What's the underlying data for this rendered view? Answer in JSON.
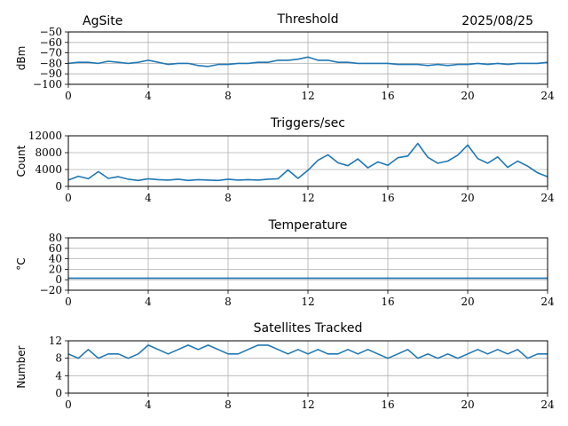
{
  "header": {
    "site": "AgSite",
    "date": "2025/08/25"
  },
  "chart_data": [
    {
      "type": "line",
      "title": "Threshold",
      "xlabel": "",
      "ylabel": "dBm",
      "xlim": [
        0,
        24
      ],
      "ylim": [
        -100,
        -50
      ],
      "xticks": [
        0,
        4,
        8,
        12,
        16,
        20,
        24
      ],
      "yticks": [
        -100,
        -90,
        -80,
        -70,
        -60,
        -50
      ],
      "ytick_labels": [
        "−100",
        "−90",
        "−80",
        "−70",
        "−60",
        "−50"
      ],
      "grid": true,
      "color": "#1f77b4",
      "series": [
        {
          "x": [
            0,
            0.5,
            1,
            1.5,
            2,
            2.5,
            3,
            3.5,
            4,
            4.5,
            5,
            5.5,
            6,
            6.5,
            7,
            7.5,
            8,
            8.5,
            9,
            9.5,
            10,
            10.5,
            11,
            11.5,
            12,
            12.5,
            13,
            13.5,
            14,
            14.5,
            15,
            15.5,
            16,
            16.5,
            17,
            17.5,
            18,
            18.5,
            19,
            19.5,
            20,
            20.5,
            21,
            21.5,
            22,
            22.5,
            23,
            23.5,
            24
          ],
          "values": [
            -80,
            -79,
            -79,
            -80,
            -78,
            -79,
            -80,
            -79,
            -77,
            -79,
            -81,
            -80,
            -80,
            -82,
            -83,
            -81,
            -81,
            -80,
            -80,
            -79,
            -79,
            -77,
            -77,
            -76,
            -74,
            -77,
            -77,
            -79,
            -79,
            -80,
            -80,
            -80,
            -80,
            -81,
            -81,
            -81,
            -82,
            -81,
            -82,
            -81,
            -81,
            -80,
            -81,
            -80,
            -81,
            -80,
            -80,
            -80,
            -79
          ]
        }
      ]
    },
    {
      "type": "line",
      "title": "Triggers/sec",
      "xlabel": "",
      "ylabel": "Count",
      "xlim": [
        0,
        24
      ],
      "ylim": [
        0,
        12000
      ],
      "xticks": [
        0,
        4,
        8,
        12,
        16,
        20,
        24
      ],
      "yticks": [
        0,
        4000,
        8000,
        12000
      ],
      "ytick_labels": [
        "0",
        "4000",
        "8000",
        "12000"
      ],
      "grid": true,
      "color": "#1f77b4",
      "series": [
        {
          "x": [
            0,
            0.5,
            1,
            1.5,
            2,
            2.5,
            3,
            3.5,
            4,
            4.5,
            5,
            5.5,
            6,
            6.5,
            7,
            7.5,
            8,
            8.5,
            9,
            9.5,
            10,
            10.5,
            11,
            11.5,
            12,
            12.5,
            13,
            13.5,
            14,
            14.5,
            15,
            15.5,
            16,
            16.5,
            17,
            17.5,
            18,
            18.5,
            19,
            19.5,
            20,
            20.5,
            21,
            21.5,
            22,
            22.5,
            23,
            23.5,
            24
          ],
          "values": [
            1500,
            2400,
            1800,
            3500,
            1900,
            2300,
            1700,
            1400,
            1800,
            1600,
            1500,
            1700,
            1400,
            1600,
            1500,
            1400,
            1700,
            1500,
            1600,
            1500,
            1700,
            1800,
            3900,
            1900,
            3800,
            6200,
            7500,
            5600,
            4900,
            6500,
            4400,
            5800,
            5000,
            6800,
            7200,
            10200,
            6900,
            5500,
            6000,
            7400,
            9800,
            6600,
            5500,
            7000,
            4500,
            6000,
            4800,
            3200,
            2300
          ]
        }
      ]
    },
    {
      "type": "line",
      "title": "Temperature",
      "xlabel": "",
      "ylabel": "°C",
      "xlim": [
        0,
        24
      ],
      "ylim": [
        -20,
        80
      ],
      "xticks": [
        0,
        4,
        8,
        12,
        16,
        20,
        24
      ],
      "yticks": [
        -20,
        0,
        20,
        40,
        60,
        80
      ],
      "ytick_labels": [
        "−20",
        "0",
        "20",
        "40",
        "60",
        "80"
      ],
      "grid": true,
      "color": "#1f77b4",
      "series": [
        {
          "x": [
            0,
            24
          ],
          "values": [
            3,
            3
          ]
        }
      ]
    },
    {
      "type": "line",
      "title": "Satellites Tracked",
      "xlabel": "",
      "ylabel": "Number",
      "xlim": [
        0,
        24
      ],
      "ylim": [
        0,
        12
      ],
      "xticks": [
        0,
        4,
        8,
        12,
        16,
        20,
        24
      ],
      "yticks": [
        0,
        4,
        8,
        12
      ],
      "ytick_labels": [
        "0",
        "4",
        "8",
        "12"
      ],
      "grid": true,
      "color": "#1f77b4",
      "series": [
        {
          "x": [
            0,
            0.5,
            1,
            1.5,
            2,
            2.5,
            3,
            3.5,
            4,
            4.5,
            5,
            5.5,
            6,
            6.5,
            7,
            7.5,
            8,
            8.5,
            9,
            9.5,
            10,
            10.5,
            11,
            11.5,
            12,
            12.5,
            13,
            13.5,
            14,
            14.5,
            15,
            15.5,
            16,
            16.5,
            17,
            17.5,
            18,
            18.5,
            19,
            19.5,
            20,
            20.5,
            21,
            21.5,
            22,
            22.5,
            23,
            23.5,
            24
          ],
          "values": [
            9,
            8,
            10,
            8,
            9,
            9,
            8,
            9,
            11,
            10,
            9,
            10,
            11,
            10,
            11,
            10,
            9,
            9,
            10,
            11,
            11,
            10,
            9,
            10,
            9,
            10,
            9,
            9,
            10,
            9,
            10,
            9,
            8,
            9,
            10,
            8,
            9,
            8,
            9,
            8,
            9,
            10,
            9,
            10,
            9,
            10,
            8,
            9,
            9
          ]
        }
      ]
    }
  ]
}
